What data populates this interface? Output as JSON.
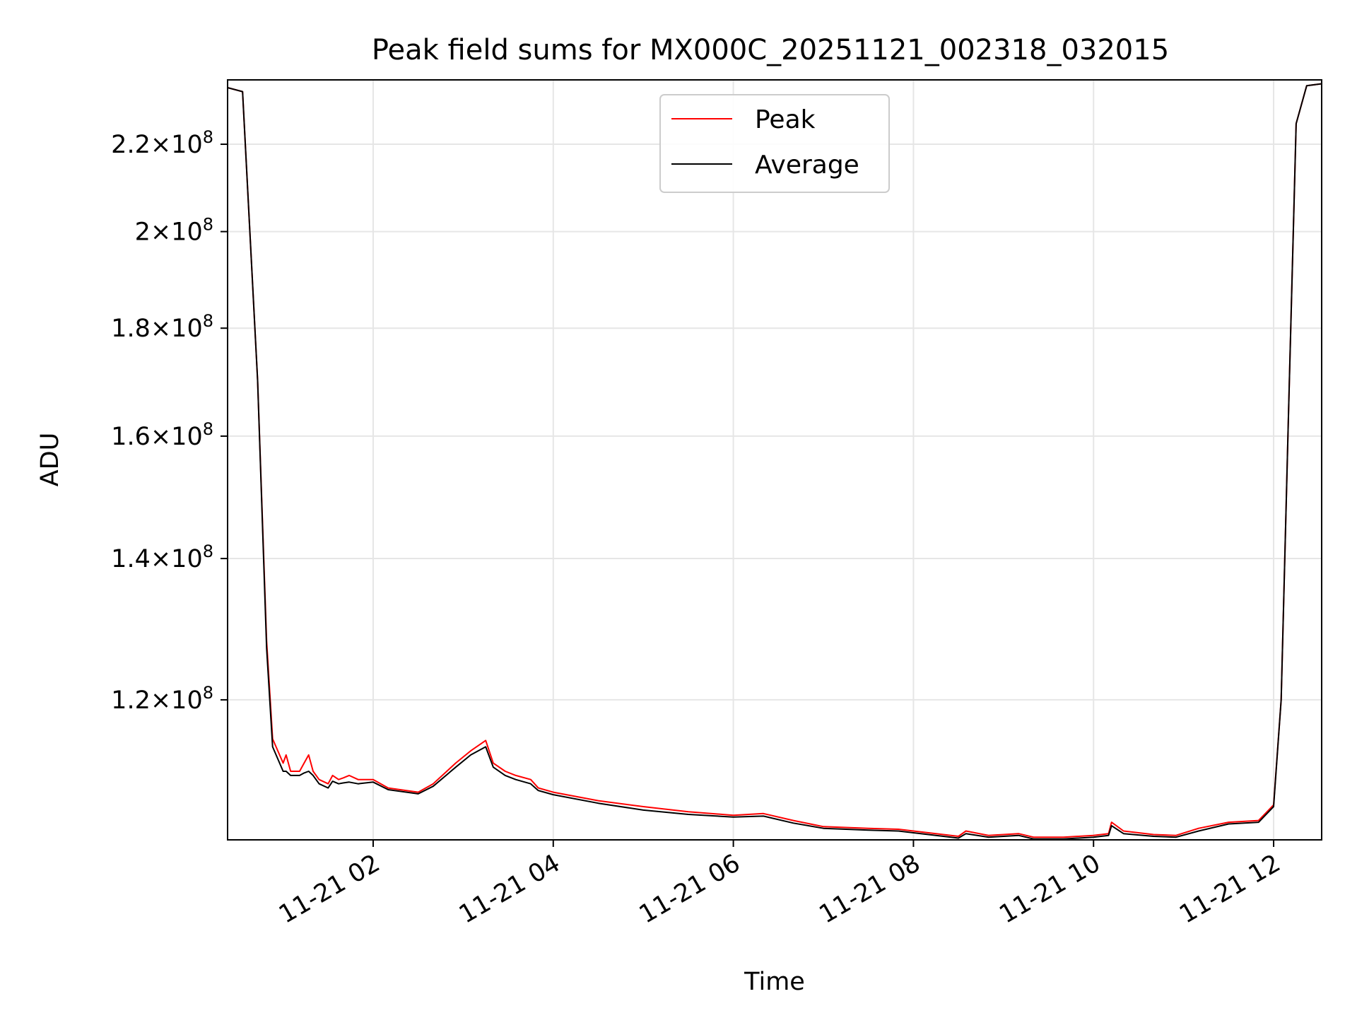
{
  "chart_data": {
    "type": "line",
    "title": "Peak field sums for MX000C_20251121_002318_032015",
    "xlabel": "Time",
    "ylabel": "ADU",
    "y_scale": "log",
    "grid": true,
    "legend_position": "upper-center",
    "xlim": [
      "2025-11-21 00:23",
      "2025-11-21 12:32"
    ],
    "ylim": [
      103000000,
      236000000
    ],
    "x_ticks": [
      {
        "value": "2025-11-21 02:00",
        "label": "11-21 02"
      },
      {
        "value": "2025-11-21 04:00",
        "label": "11-21 04"
      },
      {
        "value": "2025-11-21 06:00",
        "label": "11-21 06"
      },
      {
        "value": "2025-11-21 08:00",
        "label": "11-21 08"
      },
      {
        "value": "2025-11-21 10:00",
        "label": "11-21 10"
      },
      {
        "value": "2025-11-21 12:00",
        "label": "11-21 12"
      }
    ],
    "y_ticks": [
      {
        "value": 120000000,
        "mantissa": "1.2",
        "exponent": "8"
      },
      {
        "value": 140000000,
        "mantissa": "1.4",
        "exponent": "8"
      },
      {
        "value": 160000000,
        "mantissa": "1.6",
        "exponent": "8"
      },
      {
        "value": 180000000,
        "mantissa": "1.8",
        "exponent": "8"
      },
      {
        "value": 200000000,
        "mantissa": "2",
        "exponent": "8"
      },
      {
        "value": 220000000,
        "mantissa": "2.2",
        "exponent": "8"
      }
    ],
    "series": [
      {
        "name": "Peak",
        "color": "#ff0000",
        "x": [
          "2025-11-21 00:23",
          "2025-11-21 00:33",
          "2025-11-21 00:43",
          "2025-11-21 00:49",
          "2025-11-21 00:53",
          "2025-11-21 01:00",
          "2025-11-21 01:02",
          "2025-11-21 01:05",
          "2025-11-21 01:11",
          "2025-11-21 01:14",
          "2025-11-21 01:17",
          "2025-11-21 01:20",
          "2025-11-21 01:24",
          "2025-11-21 01:30",
          "2025-11-21 01:33",
          "2025-11-21 01:37",
          "2025-11-21 01:40",
          "2025-11-21 01:44",
          "2025-11-21 01:50",
          "2025-11-21 02:00",
          "2025-11-21 02:10",
          "2025-11-21 02:30",
          "2025-11-21 02:40",
          "2025-11-21 02:55",
          "2025-11-21 03:05",
          "2025-11-21 03:15",
          "2025-11-21 03:20",
          "2025-11-21 03:28",
          "2025-11-21 03:35",
          "2025-11-21 03:45",
          "2025-11-21 03:50",
          "2025-11-21 04:00",
          "2025-11-21 04:30",
          "2025-11-21 05:00",
          "2025-11-21 05:30",
          "2025-11-21 06:00",
          "2025-11-21 06:20",
          "2025-11-21 06:40",
          "2025-11-21 07:00",
          "2025-11-21 07:30",
          "2025-11-21 07:50",
          "2025-11-21 08:10",
          "2025-11-21 08:30",
          "2025-11-21 08:35",
          "2025-11-21 08:50",
          "2025-11-21 09:10",
          "2025-11-21 09:20",
          "2025-11-21 09:40",
          "2025-11-21 10:00",
          "2025-11-21 10:10",
          "2025-11-21 10:12",
          "2025-11-21 10:20",
          "2025-11-21 10:40",
          "2025-11-21 10:55",
          "2025-11-21 11:10",
          "2025-11-21 11:30",
          "2025-11-21 11:50",
          "2025-11-21 12:00",
          "2025-11-21 12:05",
          "2025-11-21 12:10",
          "2025-11-21 12:15",
          "2025-11-21 12:22",
          "2025-11-21 12:32"
        ],
        "values": [
          234000000,
          233000000,
          170000000,
          128000000,
          115000000,
          112000000,
          113000000,
          111000000,
          111000000,
          112000000,
          113000000,
          111000000,
          110000000,
          109500000,
          110500000,
          110000000,
          110200000,
          110500000,
          110000000,
          110000000,
          109000000,
          108500000,
          109500000,
          112000000,
          113500000,
          114800000,
          112000000,
          111000000,
          110500000,
          110000000,
          109000000,
          108500000,
          107500000,
          106800000,
          106200000,
          105800000,
          106000000,
          105200000,
          104500000,
          104300000,
          104200000,
          103800000,
          103400000,
          104000000,
          103500000,
          103700000,
          103300000,
          103300000,
          103500000,
          103700000,
          105000000,
          104000000,
          103600000,
          103500000,
          104300000,
          105000000,
          105200000,
          107000000,
          120000000,
          165000000,
          225000000,
          234500000,
          235000000
        ]
      },
      {
        "name": "Average",
        "color": "#000000",
        "x": [
          "2025-11-21 00:23",
          "2025-11-21 00:33",
          "2025-11-21 00:43",
          "2025-11-21 00:49",
          "2025-11-21 00:53",
          "2025-11-21 01:00",
          "2025-11-21 01:02",
          "2025-11-21 01:05",
          "2025-11-21 01:11",
          "2025-11-21 01:14",
          "2025-11-21 01:17",
          "2025-11-21 01:20",
          "2025-11-21 01:24",
          "2025-11-21 01:30",
          "2025-11-21 01:33",
          "2025-11-21 01:37",
          "2025-11-21 01:40",
          "2025-11-21 01:44",
          "2025-11-21 01:50",
          "2025-11-21 02:00",
          "2025-11-21 02:10",
          "2025-11-21 02:30",
          "2025-11-21 02:40",
          "2025-11-21 02:55",
          "2025-11-21 03:05",
          "2025-11-21 03:15",
          "2025-11-21 03:20",
          "2025-11-21 03:28",
          "2025-11-21 03:35",
          "2025-11-21 03:45",
          "2025-11-21 03:50",
          "2025-11-21 04:00",
          "2025-11-21 04:30",
          "2025-11-21 05:00",
          "2025-11-21 05:30",
          "2025-11-21 06:00",
          "2025-11-21 06:20",
          "2025-11-21 06:40",
          "2025-11-21 07:00",
          "2025-11-21 07:30",
          "2025-11-21 07:50",
          "2025-11-21 08:10",
          "2025-11-21 08:30",
          "2025-11-21 08:35",
          "2025-11-21 08:50",
          "2025-11-21 09:10",
          "2025-11-21 09:20",
          "2025-11-21 09:40",
          "2025-11-21 10:00",
          "2025-11-21 10:10",
          "2025-11-21 10:12",
          "2025-11-21 10:20",
          "2025-11-21 10:40",
          "2025-11-21 10:55",
          "2025-11-21 11:10",
          "2025-11-21 11:30",
          "2025-11-21 11:50",
          "2025-11-21 12:00",
          "2025-11-21 12:05",
          "2025-11-21 12:10",
          "2025-11-21 12:15",
          "2025-11-21 12:22",
          "2025-11-21 12:32"
        ],
        "values": [
          234000000,
          233000000,
          170000000,
          127000000,
          114000000,
          111000000,
          111000000,
          110500000,
          110500000,
          110800000,
          111000000,
          110500000,
          109500000,
          109000000,
          109800000,
          109500000,
          109600000,
          109700000,
          109500000,
          109700000,
          108800000,
          108300000,
          109200000,
          111500000,
          113000000,
          114000000,
          111500000,
          110500000,
          110000000,
          109500000,
          108700000,
          108200000,
          107200000,
          106400000,
          105900000,
          105600000,
          105700000,
          104900000,
          104300000,
          104100000,
          104000000,
          103600000,
          103200000,
          103700000,
          103300000,
          103500000,
          103100000,
          103100000,
          103300000,
          103500000,
          104600000,
          103700000,
          103400000,
          103300000,
          104000000,
          104800000,
          105000000,
          106800000,
          120000000,
          165000000,
          225000000,
          234500000,
          235000000
        ]
      }
    ],
    "annotations": []
  }
}
